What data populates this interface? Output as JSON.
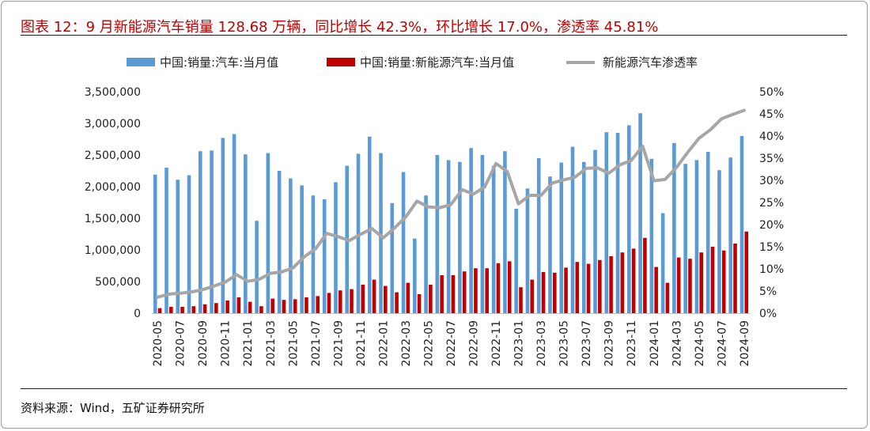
{
  "title": "图表 12：9 月新能源汽车销量 128.68 万辆，同比增长 42.3%，环比增长 17.0%，渗透率 45.81%",
  "source": "资料来源：Wind，五矿证券研究所",
  "chart_data": {
    "type": "bar",
    "categories": [
      "2020-05",
      "2020-06",
      "2020-07",
      "2020-08",
      "2020-09",
      "2020-10",
      "2020-11",
      "2020-12",
      "2021-01",
      "2021-02",
      "2021-03",
      "2021-04",
      "2021-05",
      "2021-06",
      "2021-07",
      "2021-08",
      "2021-09",
      "2021-10",
      "2021-11",
      "2021-12",
      "2022-01",
      "2022-02",
      "2022-03",
      "2022-04",
      "2022-05",
      "2022-06",
      "2022-07",
      "2022-08",
      "2022-09",
      "2022-10",
      "2022-11",
      "2022-12",
      "2023-01",
      "2023-02",
      "2023-03",
      "2023-04",
      "2023-05",
      "2023-06",
      "2023-07",
      "2023-08",
      "2023-09",
      "2023-10",
      "2023-11",
      "2023-12",
      "2024-01",
      "2024-02",
      "2024-03",
      "2024-04",
      "2024-05",
      "2024-06",
      "2024-07",
      "2024-08",
      "2024-09"
    ],
    "x_tick_labels": [
      "2020-05",
      "2020-07",
      "2020-09",
      "2020-11",
      "2021-01",
      "2021-03",
      "2021-05",
      "2021-07",
      "2021-09",
      "2021-11",
      "2022-01",
      "2022-03",
      "2022-05",
      "2022-07",
      "2022-09",
      "2022-11",
      "2023-01",
      "2023-03",
      "2023-05",
      "2023-07",
      "2023-09",
      "2023-11",
      "2024-01",
      "2024-03",
      "2024-05",
      "2024-07",
      "2024-09"
    ],
    "series": [
      {
        "name": "中国:销量:汽车:当月值",
        "kind": "bar",
        "axis": "left",
        "color": "#5b9bd5",
        "values": [
          2190000,
          2300000,
          2110000,
          2180000,
          2560000,
          2570000,
          2770000,
          2830000,
          2510000,
          1460000,
          2530000,
          2250000,
          2130000,
          2020000,
          1860000,
          1800000,
          2070000,
          2330000,
          2520000,
          2790000,
          2530000,
          1740000,
          2230000,
          1180000,
          1860000,
          2500000,
          2420000,
          2390000,
          2610000,
          2500000,
          2330000,
          2560000,
          1650000,
          1970000,
          2450000,
          2160000,
          2380000,
          2630000,
          2390000,
          2580000,
          2860000,
          2850000,
          2970000,
          3160000,
          2440000,
          1580000,
          2690000,
          2360000,
          2420000,
          2550000,
          2260000,
          2460000,
          2800000
        ]
      },
      {
        "name": "中国:销量:新能源汽车:当月值",
        "kind": "bar",
        "axis": "left",
        "color": "#c00000",
        "values": [
          80000,
          100000,
          100000,
          110000,
          140000,
          160000,
          200000,
          250000,
          180000,
          110000,
          230000,
          210000,
          220000,
          250000,
          270000,
          320000,
          360000,
          380000,
          450000,
          530000,
          430000,
          330000,
          480000,
          300000,
          450000,
          600000,
          600000,
          660000,
          710000,
          710000,
          790000,
          820000,
          410000,
          530000,
          650000,
          640000,
          720000,
          810000,
          780000,
          840000,
          900000,
          960000,
          1020000,
          1190000,
          730000,
          480000,
          880000,
          860000,
          960000,
          1050000,
          990000,
          1100000,
          1290000
        ]
      },
      {
        "name": "新能源汽车渗透率",
        "kind": "line",
        "axis": "right",
        "color": "#a6a6a6",
        "values": [
          3.6,
          4.3,
          4.5,
          4.8,
          5.3,
          6.1,
          7.0,
          8.7,
          7.2,
          7.6,
          9.0,
          9.3,
          10.2,
          12.7,
          14.5,
          18.0,
          17.3,
          16.4,
          17.8,
          19.1,
          17.0,
          19.2,
          21.7,
          25.3,
          24.0,
          23.8,
          24.5,
          27.9,
          26.9,
          28.5,
          33.8,
          32.0,
          24.7,
          26.6,
          26.6,
          29.4,
          30.1,
          30.7,
          32.7,
          32.8,
          31.6,
          33.5,
          34.5,
          37.7,
          29.9,
          30.2,
          32.9,
          36.3,
          39.5,
          41.4,
          43.9,
          44.9,
          45.8
        ]
      }
    ],
    "left_axis": {
      "min": 0,
      "max": 3500000,
      "step": 500000,
      "tick_labels": [
        "0",
        "500,000",
        "1,000,000",
        "1,500,000",
        "2,000,000",
        "2,500,000",
        "3,000,000",
        "3,500,000"
      ]
    },
    "right_axis": {
      "min": 0,
      "max": 50,
      "step": 5,
      "tick_labels": [
        "0%",
        "5%",
        "10%",
        "15%",
        "20%",
        "25%",
        "30%",
        "35%",
        "40%",
        "45%",
        "50%"
      ]
    },
    "legend_position": "top",
    "grid": false
  }
}
